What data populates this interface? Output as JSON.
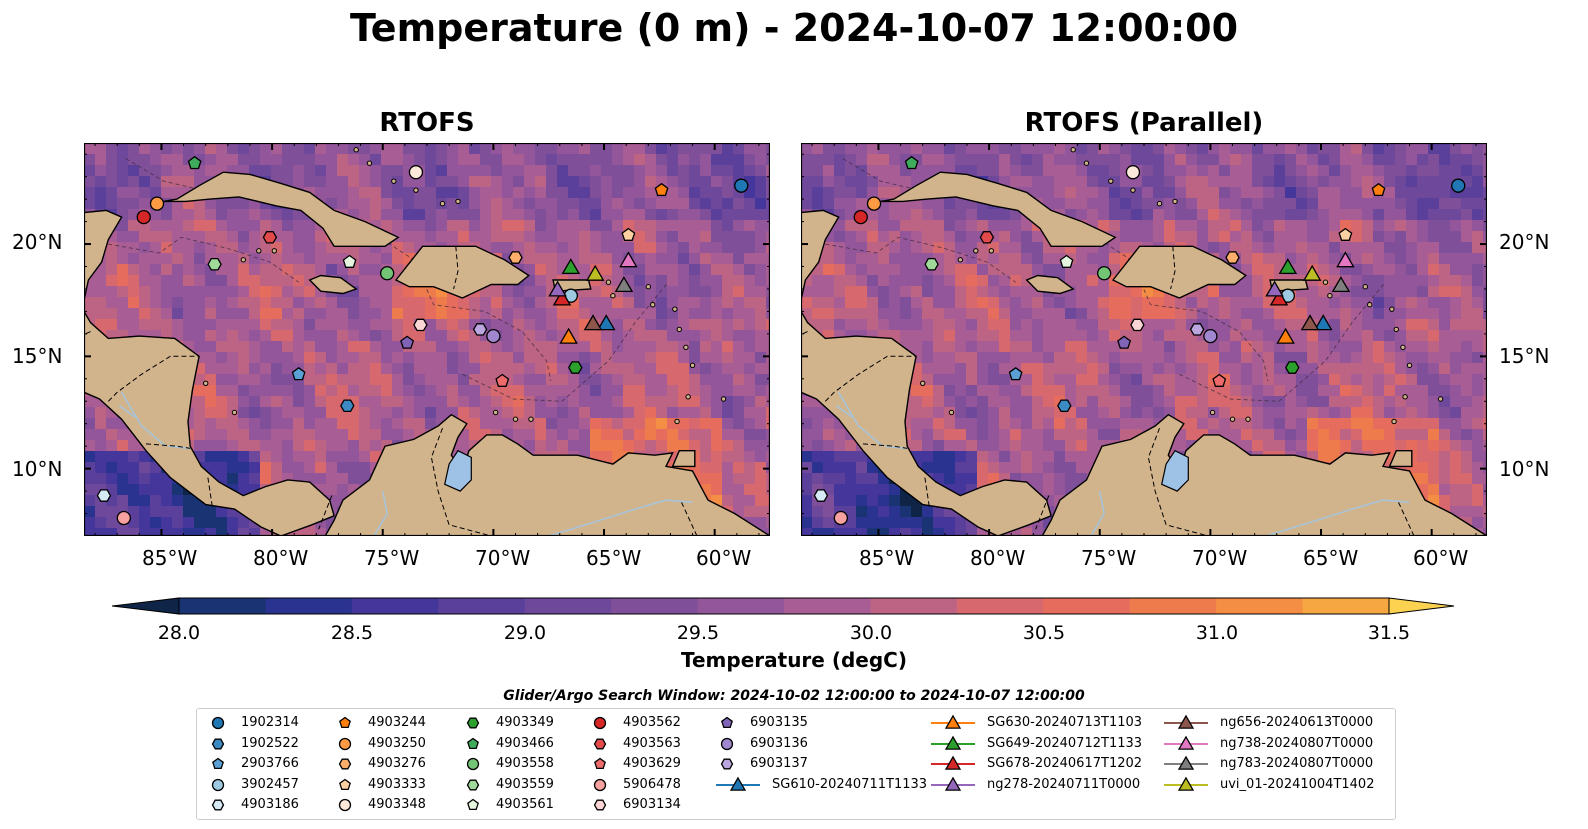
{
  "title": "Temperature (0 m) - 2024-10-07 12:00:00",
  "panels": [
    {
      "title": "RTOFS",
      "variant": "rtofs"
    },
    {
      "title": "RTOFS (Parallel)",
      "variant": "parallel"
    }
  ],
  "map": {
    "lon_range": [
      -88.5,
      -57.5
    ],
    "lat_range": [
      7,
      24.5
    ],
    "x_ticks": [
      "85°W",
      "80°W",
      "75°W",
      "70°W",
      "65°W",
      "60°W"
    ],
    "y_ticks": [
      "20°N",
      "15°N",
      "10°N"
    ],
    "land_color": "#d2b48c",
    "lake_color": "#9ec1e6",
    "river_color": "#a8c4d8"
  },
  "colorbar": {
    "label": "Temperature (degC)",
    "min": 28.0,
    "max": 31.5,
    "step": 0.25,
    "ticks": [
      "28.0",
      "28.5",
      "29.0",
      "29.5",
      "30.0",
      "30.5",
      "31.0",
      "31.5"
    ],
    "colors": [
      "#0f2547",
      "#1a3372",
      "#2b3390",
      "#44369a",
      "#5a3f9b",
      "#6d489b",
      "#804f9a",
      "#94569a",
      "#a85d94",
      "#bd6384",
      "#d6686e",
      "#e66d5d",
      "#ee7b4c",
      "#f38e44",
      "#f7a742",
      "#fbd351"
    ]
  },
  "legend": {
    "title": "Glider/Argo Search Window: 2024-10-02 12:00:00 to 2024-10-07 12:00:00",
    "columns": [
      [
        {
          "label": "1902314",
          "marker": "circle",
          "color": "#1f77b4"
        },
        {
          "label": "1902522",
          "marker": "hexagon",
          "color": "#3c8ac4"
        },
        {
          "label": "2903766",
          "marker": "pentagon",
          "color": "#5aa0d4"
        },
        {
          "label": "3902457",
          "marker": "circle",
          "color": "#9ecae1"
        },
        {
          "label": "4903186",
          "marker": "hexagon",
          "color": "#d6eaf6"
        }
      ],
      [
        {
          "label": "4903244",
          "marker": "pentagon",
          "color": "#ff7f0e"
        },
        {
          "label": "4903250",
          "marker": "circle",
          "color": "#fd9a44"
        },
        {
          "label": "4903276",
          "marker": "hexagon",
          "color": "#fdae6b"
        },
        {
          "label": "4903333",
          "marker": "pentagon",
          "color": "#fdd0a2"
        },
        {
          "label": "4903348",
          "marker": "circle",
          "color": "#feeadb"
        }
      ],
      [
        {
          "label": "4903349",
          "marker": "hexagon",
          "color": "#2ca02c"
        },
        {
          "label": "4903466",
          "marker": "pentagon",
          "color": "#41ab5d"
        },
        {
          "label": "4903558",
          "marker": "circle",
          "color": "#74c476"
        },
        {
          "label": "4903559",
          "marker": "hexagon",
          "color": "#a1d99b"
        },
        {
          "label": "4903561",
          "marker": "pentagon",
          "color": "#e5f5e0"
        }
      ],
      [
        {
          "label": "4903562",
          "marker": "circle",
          "color": "#d62728"
        },
        {
          "label": "4903563",
          "marker": "hexagon",
          "color": "#e34a4b"
        },
        {
          "label": "4903629",
          "marker": "pentagon",
          "color": "#ef6b6b"
        },
        {
          "label": "5906478",
          "marker": "circle",
          "color": "#f7a1a1"
        },
        {
          "label": "6903134",
          "marker": "hexagon",
          "color": "#fcd5d5"
        }
      ],
      [
        {
          "label": "6903135",
          "marker": "pentagon",
          "color": "#8064b8"
        },
        {
          "label": "6903136",
          "marker": "circle",
          "color": "#a087cf"
        },
        {
          "label": "6903137",
          "marker": "hexagon",
          "color": "#bca6e0"
        },
        {
          "label": "SG610-20240711T1133",
          "marker": "triangle",
          "color": "#1f77b4",
          "line": true
        }
      ],
      [
        {
          "label": "SG630-20240713T1103",
          "marker": "triangle",
          "color": "#ff7f0e",
          "line": true
        },
        {
          "label": "SG649-20240712T1133",
          "marker": "triangle",
          "color": "#2ca02c",
          "line": true
        },
        {
          "label": "SG678-20240617T1202",
          "marker": "triangle",
          "color": "#d62728",
          "line": true
        },
        {
          "label": "ng278-20240711T0000",
          "marker": "triangle",
          "color": "#9467bd",
          "line": true
        }
      ],
      [
        {
          "label": "ng656-20240613T0000",
          "marker": "triangle",
          "color": "#8c564b",
          "line": true
        },
        {
          "label": "ng738-20240807T0000",
          "marker": "triangle",
          "color": "#e377c2",
          "line": true
        },
        {
          "label": "ng783-20240807T0000",
          "marker": "triangle",
          "color": "#7f7f7f",
          "line": true
        },
        {
          "label": "uvi_01-20241004T1402",
          "marker": "triangle",
          "color": "#bcbd22",
          "line": true
        }
      ]
    ]
  },
  "argo_floats": [
    {
      "id": "1902314",
      "lon": -58.8,
      "lat": 22.6
    },
    {
      "id": "1902522",
      "lon": -76.6,
      "lat": 12.8
    },
    {
      "id": "2903766",
      "lon": -78.8,
      "lat": 14.2
    },
    {
      "id": "3902457",
      "lon": -66.5,
      "lat": 17.7
    },
    {
      "id": "4903186",
      "lon": -87.6,
      "lat": 8.8
    },
    {
      "id": "4903244",
      "lon": -62.4,
      "lat": 22.4
    },
    {
      "id": "4903250",
      "lon": -85.2,
      "lat": 21.8
    },
    {
      "id": "4903276",
      "lon": -69.0,
      "lat": 19.4
    },
    {
      "id": "4903333",
      "lon": -63.9,
      "lat": 20.4
    },
    {
      "id": "4903348",
      "lon": -73.5,
      "lat": 23.2
    },
    {
      "id": "4903349",
      "lon": -66.3,
      "lat": 14.5
    },
    {
      "id": "4903466",
      "lon": -83.5,
      "lat": 23.6
    },
    {
      "id": "4903558",
      "lon": -74.8,
      "lat": 18.7
    },
    {
      "id": "4903559",
      "lon": -82.6,
      "lat": 19.1
    },
    {
      "id": "4903561",
      "lon": -76.5,
      "lat": 19.2
    },
    {
      "id": "4903562",
      "lon": -85.8,
      "lat": 21.2
    },
    {
      "id": "4903563",
      "lon": -80.1,
      "lat": 20.3
    },
    {
      "id": "4903629",
      "lon": -69.6,
      "lat": 13.9
    },
    {
      "id": "5906478",
      "lon": -86.7,
      "lat": 7.8
    },
    {
      "id": "6903134",
      "lon": -73.3,
      "lat": 16.4
    },
    {
      "id": "6903135",
      "lon": -73.9,
      "lat": 15.6
    },
    {
      "id": "6903136",
      "lon": -70.0,
      "lat": 15.9
    },
    {
      "id": "6903137",
      "lon": -70.6,
      "lat": 16.2
    }
  ],
  "gliders": [
    {
      "id": "SG610-20240711T1133",
      "lon": -64.9,
      "lat": 16.4
    },
    {
      "id": "SG630-20240713T1103",
      "lon": -66.6,
      "lat": 15.8
    },
    {
      "id": "SG649-20240712T1133",
      "lon": -66.5,
      "lat": 18.9
    },
    {
      "id": "SG678-20240617T1202",
      "lon": -66.9,
      "lat": 17.5
    },
    {
      "id": "ng278-20240711T0000",
      "lon": -67.1,
      "lat": 17.9
    },
    {
      "id": "ng656-20240613T0000",
      "lon": -65.5,
      "lat": 16.4
    },
    {
      "id": "ng738-20240807T0000",
      "lon": -63.9,
      "lat": 19.2
    },
    {
      "id": "ng783-20240807T0000",
      "lon": -64.1,
      "lat": 18.1
    },
    {
      "id": "uvi_01-20241004T1402",
      "lon": -65.4,
      "lat": 18.6
    }
  ]
}
